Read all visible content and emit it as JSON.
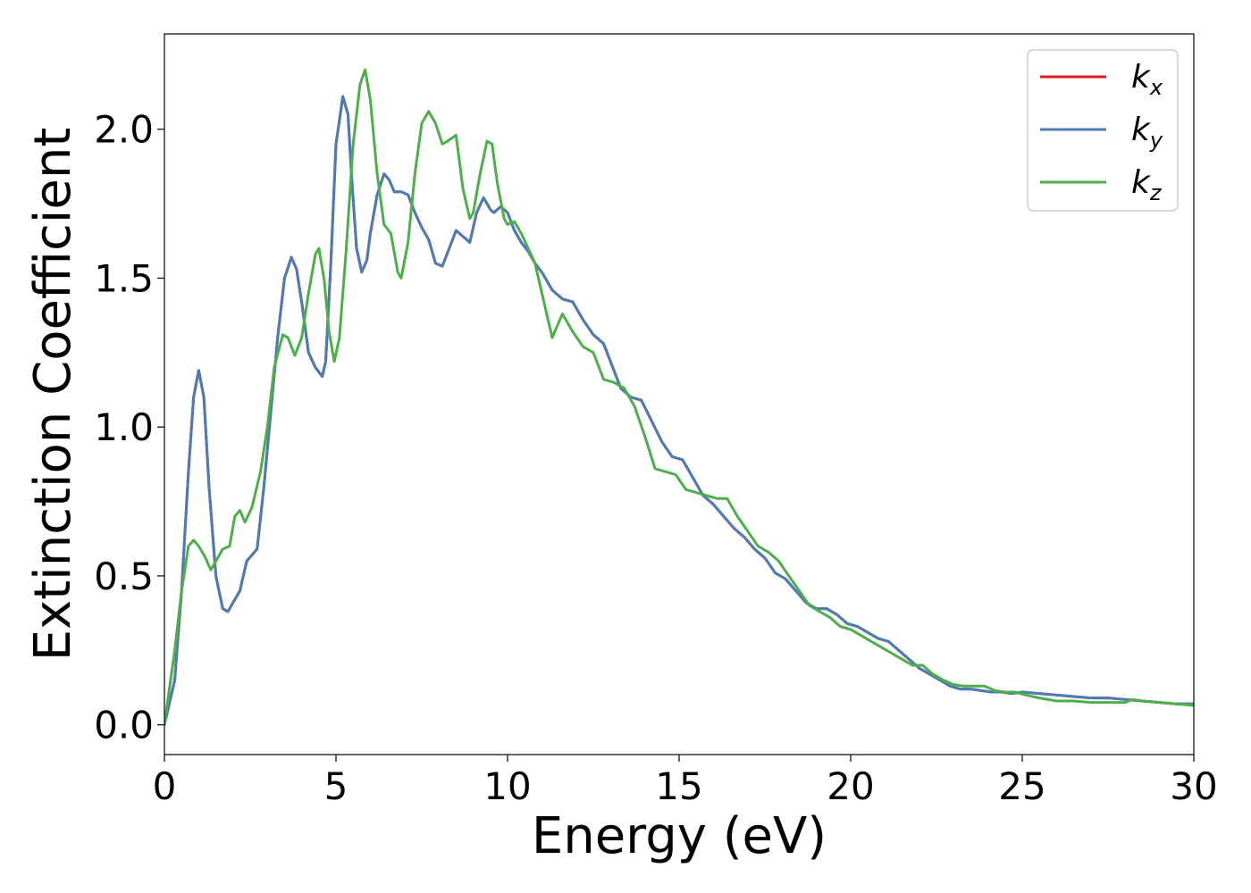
{
  "chart_data": {
    "type": "line",
    "title": "",
    "xlabel": "Energy (eV)",
    "ylabel": "Extinction Coefficient",
    "xlim": [
      0,
      30
    ],
    "ylim": [
      -0.1,
      2.32
    ],
    "xticks": [
      0,
      5,
      10,
      15,
      20,
      25,
      30
    ],
    "xtick_labels": [
      "0",
      "5",
      "10",
      "15",
      "20",
      "25",
      "30"
    ],
    "yticks": [
      0.0,
      0.5,
      1.0,
      1.5,
      2.0
    ],
    "ytick_labels": [
      "0.0",
      "0.5",
      "1.0",
      "1.5",
      "2.0"
    ],
    "grid": false,
    "legend_position": "top-right",
    "series": [
      {
        "name": "k_x",
        "label_base": "k",
        "label_sub": "x",
        "color": "#e41a1c",
        "x": [
          0,
          0.3,
          0.5,
          0.7,
          0.85,
          1.0,
          1.15,
          1.3,
          1.5,
          1.7,
          1.85,
          2.0,
          2.2,
          2.4,
          2.55,
          2.7,
          2.9,
          3.1,
          3.3,
          3.5,
          3.7,
          3.85,
          4.0,
          4.2,
          4.4,
          4.6,
          4.7,
          4.85,
          5.0,
          5.2,
          5.35,
          5.45,
          5.6,
          5.75,
          5.9,
          6.0,
          6.2,
          6.4,
          6.55,
          6.7,
          6.9,
          7.1,
          7.3,
          7.5,
          7.7,
          7.9,
          8.1,
          8.3,
          8.5,
          8.7,
          8.9,
          9.1,
          9.3,
          9.5,
          9.6,
          9.8,
          10.0,
          10.2,
          10.4,
          10.6,
          10.8,
          11.0,
          11.3,
          11.6,
          11.9,
          12.2,
          12.5,
          12.8,
          13.0,
          13.3,
          13.6,
          13.9,
          14.2,
          14.5,
          14.8,
          15.1,
          15.4,
          15.7,
          16.0,
          16.3,
          16.6,
          16.9,
          17.2,
          17.5,
          17.8,
          18.1,
          18.4,
          18.7,
          19.0,
          19.3,
          19.6,
          19.9,
          20.2,
          20.5,
          20.8,
          21.1,
          21.4,
          21.7,
          22.0,
          22.3,
          22.6,
          22.9,
          23.2,
          23.5,
          23.8,
          24.1,
          24.4,
          24.7,
          25.0,
          25.5,
          26.0,
          26.5,
          27.0,
          27.5,
          28.0,
          28.5,
          29.0,
          29.5,
          30.0
        ],
        "y": [
          0.0,
          0.15,
          0.45,
          0.85,
          1.1,
          1.19,
          1.1,
          0.8,
          0.5,
          0.39,
          0.38,
          0.41,
          0.45,
          0.55,
          0.57,
          0.59,
          0.8,
          1.05,
          1.3,
          1.5,
          1.57,
          1.53,
          1.42,
          1.25,
          1.2,
          1.17,
          1.22,
          1.55,
          1.95,
          2.11,
          2.05,
          1.85,
          1.6,
          1.52,
          1.56,
          1.65,
          1.78,
          1.85,
          1.83,
          1.79,
          1.79,
          1.78,
          1.72,
          1.67,
          1.63,
          1.55,
          1.54,
          1.6,
          1.66,
          1.64,
          1.62,
          1.72,
          1.77,
          1.73,
          1.72,
          1.74,
          1.72,
          1.66,
          1.62,
          1.59,
          1.55,
          1.52,
          1.46,
          1.43,
          1.42,
          1.36,
          1.31,
          1.28,
          1.22,
          1.13,
          1.1,
          1.09,
          1.02,
          0.95,
          0.9,
          0.89,
          0.83,
          0.77,
          0.74,
          0.7,
          0.66,
          0.63,
          0.59,
          0.56,
          0.51,
          0.49,
          0.45,
          0.41,
          0.39,
          0.39,
          0.37,
          0.34,
          0.33,
          0.31,
          0.29,
          0.28,
          0.25,
          0.22,
          0.19,
          0.17,
          0.15,
          0.13,
          0.12,
          0.12,
          0.115,
          0.11,
          0.11,
          0.105,
          0.11,
          0.105,
          0.1,
          0.095,
          0.09,
          0.09,
          0.085,
          0.08,
          0.075,
          0.07,
          0.07
        ]
      },
      {
        "name": "k_y",
        "label_base": "k",
        "label_sub": "y",
        "color": "#4a7cb8",
        "x": [
          0,
          0.3,
          0.5,
          0.7,
          0.85,
          1.0,
          1.15,
          1.3,
          1.5,
          1.7,
          1.85,
          2.0,
          2.2,
          2.4,
          2.55,
          2.7,
          2.9,
          3.1,
          3.3,
          3.5,
          3.7,
          3.85,
          4.0,
          4.2,
          4.4,
          4.6,
          4.7,
          4.85,
          5.0,
          5.2,
          5.35,
          5.45,
          5.6,
          5.75,
          5.9,
          6.0,
          6.2,
          6.4,
          6.55,
          6.7,
          6.9,
          7.1,
          7.3,
          7.5,
          7.7,
          7.9,
          8.1,
          8.3,
          8.5,
          8.7,
          8.9,
          9.1,
          9.3,
          9.5,
          9.6,
          9.8,
          10.0,
          10.2,
          10.4,
          10.6,
          10.8,
          11.0,
          11.3,
          11.6,
          11.9,
          12.2,
          12.5,
          12.8,
          13.0,
          13.3,
          13.6,
          13.9,
          14.2,
          14.5,
          14.8,
          15.1,
          15.4,
          15.7,
          16.0,
          16.3,
          16.6,
          16.9,
          17.2,
          17.5,
          17.8,
          18.1,
          18.4,
          18.7,
          19.0,
          19.3,
          19.6,
          19.9,
          20.2,
          20.5,
          20.8,
          21.1,
          21.4,
          21.7,
          22.0,
          22.3,
          22.6,
          22.9,
          23.2,
          23.5,
          23.8,
          24.1,
          24.4,
          24.7,
          25.0,
          25.5,
          26.0,
          26.5,
          27.0,
          27.5,
          28.0,
          28.5,
          29.0,
          29.5,
          30.0
        ],
        "y": [
          0.0,
          0.15,
          0.45,
          0.85,
          1.1,
          1.19,
          1.1,
          0.8,
          0.5,
          0.39,
          0.38,
          0.41,
          0.45,
          0.55,
          0.57,
          0.59,
          0.8,
          1.05,
          1.3,
          1.5,
          1.57,
          1.53,
          1.42,
          1.25,
          1.2,
          1.17,
          1.22,
          1.55,
          1.95,
          2.11,
          2.05,
          1.85,
          1.6,
          1.52,
          1.56,
          1.65,
          1.78,
          1.85,
          1.83,
          1.79,
          1.79,
          1.78,
          1.72,
          1.67,
          1.63,
          1.55,
          1.54,
          1.6,
          1.66,
          1.64,
          1.62,
          1.72,
          1.77,
          1.73,
          1.72,
          1.74,
          1.72,
          1.66,
          1.62,
          1.59,
          1.55,
          1.52,
          1.46,
          1.43,
          1.42,
          1.36,
          1.31,
          1.28,
          1.22,
          1.13,
          1.1,
          1.09,
          1.02,
          0.95,
          0.9,
          0.89,
          0.83,
          0.77,
          0.74,
          0.7,
          0.66,
          0.63,
          0.59,
          0.56,
          0.51,
          0.49,
          0.45,
          0.41,
          0.39,
          0.39,
          0.37,
          0.34,
          0.33,
          0.31,
          0.29,
          0.28,
          0.25,
          0.22,
          0.19,
          0.17,
          0.15,
          0.13,
          0.12,
          0.12,
          0.115,
          0.11,
          0.11,
          0.105,
          0.11,
          0.105,
          0.1,
          0.095,
          0.09,
          0.09,
          0.085,
          0.08,
          0.075,
          0.07,
          0.07
        ]
      },
      {
        "name": "k_z",
        "label_base": "k",
        "label_sub": "z",
        "color": "#4daf4a",
        "x": [
          0,
          0.3,
          0.5,
          0.7,
          0.85,
          1.0,
          1.2,
          1.35,
          1.5,
          1.7,
          1.9,
          2.05,
          2.2,
          2.35,
          2.55,
          2.8,
          3.0,
          3.2,
          3.45,
          3.6,
          3.8,
          4.0,
          4.2,
          4.4,
          4.5,
          4.65,
          4.8,
          4.95,
          5.1,
          5.3,
          5.5,
          5.7,
          5.85,
          6.0,
          6.2,
          6.4,
          6.6,
          6.8,
          6.9,
          7.1,
          7.3,
          7.5,
          7.7,
          7.9,
          8.1,
          8.25,
          8.5,
          8.7,
          8.9,
          9.0,
          9.2,
          9.4,
          9.55,
          9.7,
          9.9,
          10.0,
          10.2,
          10.4,
          10.6,
          10.8,
          11.0,
          11.3,
          11.6,
          11.9,
          12.2,
          12.5,
          12.8,
          13.1,
          13.4,
          13.7,
          14.0,
          14.3,
          14.6,
          14.9,
          15.2,
          15.5,
          15.8,
          16.1,
          16.4,
          16.7,
          17.0,
          17.3,
          17.6,
          17.9,
          18.2,
          18.5,
          18.8,
          19.1,
          19.4,
          19.7,
          20.0,
          20.3,
          20.6,
          20.9,
          21.2,
          21.5,
          21.8,
          22.1,
          22.4,
          22.7,
          23.0,
          23.3,
          23.6,
          23.9,
          24.2,
          24.5,
          24.8,
          25.1,
          25.5,
          26.0,
          26.5,
          27.0,
          27.5,
          28.0,
          28.2,
          28.5,
          29.0,
          29.5,
          30.0
        ],
        "y": [
          0.0,
          0.25,
          0.45,
          0.6,
          0.62,
          0.6,
          0.56,
          0.52,
          0.55,
          0.59,
          0.6,
          0.7,
          0.72,
          0.68,
          0.73,
          0.85,
          1.0,
          1.2,
          1.31,
          1.3,
          1.24,
          1.3,
          1.45,
          1.58,
          1.6,
          1.5,
          1.32,
          1.22,
          1.3,
          1.6,
          1.95,
          2.15,
          2.2,
          2.1,
          1.85,
          1.68,
          1.65,
          1.52,
          1.5,
          1.62,
          1.85,
          2.02,
          2.06,
          2.02,
          1.95,
          1.96,
          1.98,
          1.8,
          1.7,
          1.72,
          1.85,
          1.96,
          1.95,
          1.82,
          1.7,
          1.68,
          1.69,
          1.65,
          1.6,
          1.55,
          1.45,
          1.3,
          1.38,
          1.32,
          1.27,
          1.25,
          1.16,
          1.15,
          1.13,
          1.07,
          0.97,
          0.86,
          0.85,
          0.84,
          0.79,
          0.78,
          0.77,
          0.76,
          0.76,
          0.7,
          0.65,
          0.6,
          0.58,
          0.55,
          0.5,
          0.45,
          0.4,
          0.38,
          0.36,
          0.33,
          0.32,
          0.3,
          0.28,
          0.26,
          0.24,
          0.22,
          0.2,
          0.2,
          0.17,
          0.15,
          0.135,
          0.13,
          0.13,
          0.13,
          0.115,
          0.11,
          0.11,
          0.1,
          0.09,
          0.08,
          0.08,
          0.075,
          0.075,
          0.075,
          0.085,
          0.08,
          0.075,
          0.07,
          0.065
        ]
      }
    ]
  }
}
